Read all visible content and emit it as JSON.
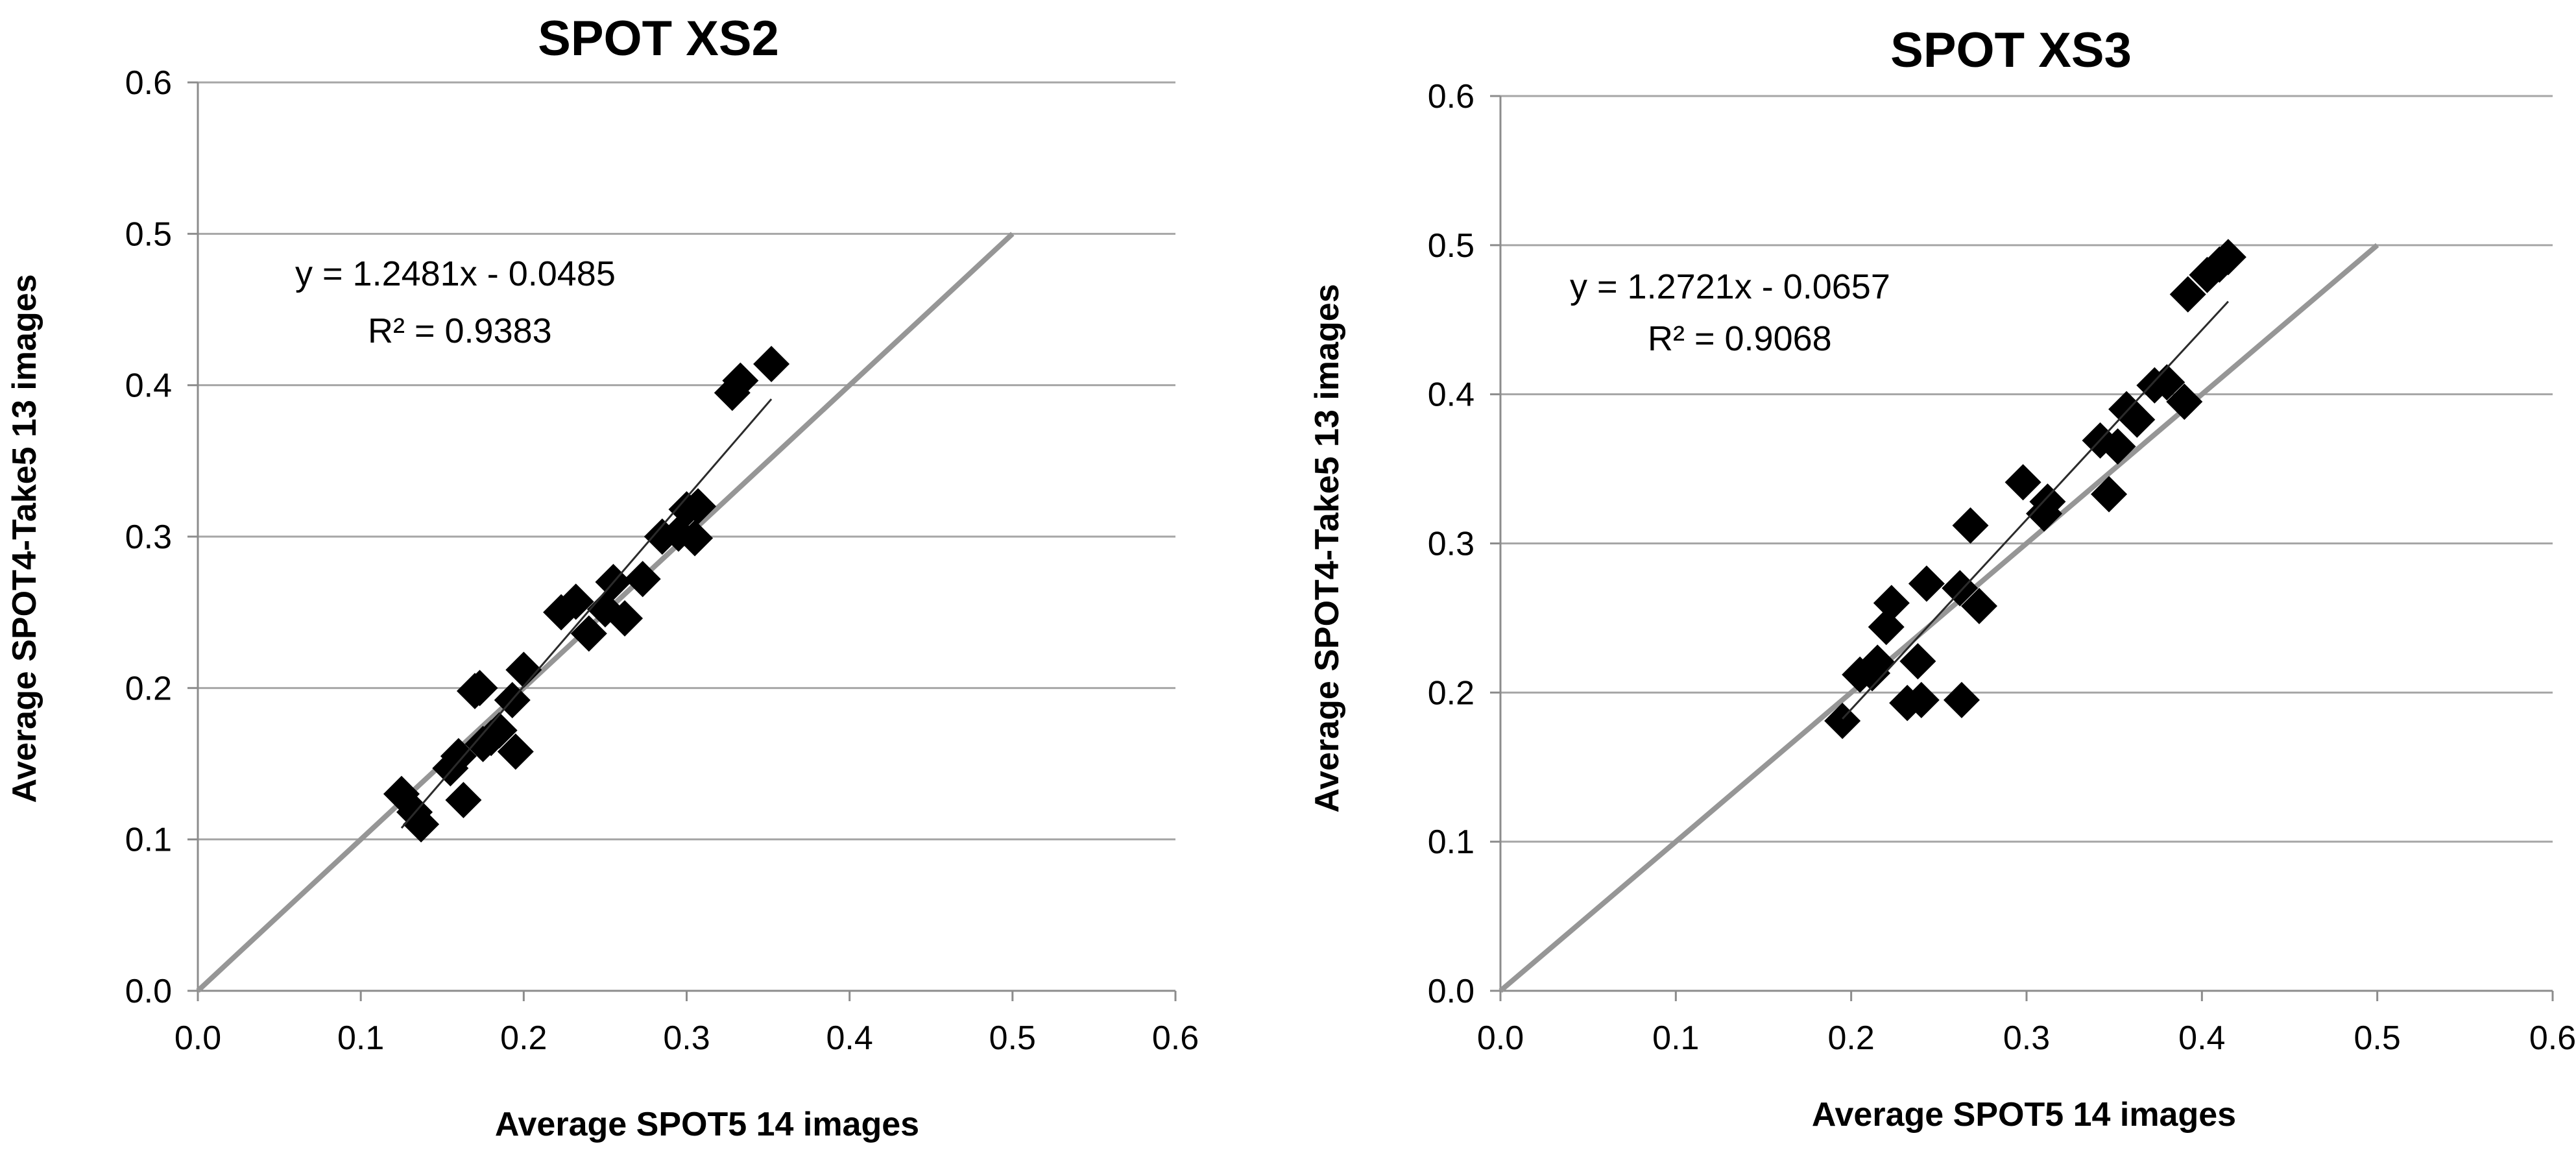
{
  "chart_data": [
    {
      "type": "scatter",
      "title": "SPOT XS2",
      "xlabel": "Average SPOT5 14 images",
      "ylabel": "Average SPOT4-Take5 13 images",
      "xlim": [
        0,
        0.6
      ],
      "ylim": [
        0,
        0.6
      ],
      "xticks": [
        "0.0",
        "0.1",
        "0.2",
        "0.3",
        "0.4",
        "0.5",
        "0.6"
      ],
      "yticks": [
        "0.0",
        "0.1",
        "0.2",
        "0.3",
        "0.4",
        "0.5",
        "0.6"
      ],
      "grid": "horizontal",
      "equation": "y = 1.2481x - 0.0485",
      "r2": "R² = 0.9383",
      "trendline": {
        "slope": 1.2481,
        "intercept": -0.0485,
        "x_range": [
          0.125,
          0.352
        ]
      },
      "reference_line": {
        "x": [
          0,
          0.5
        ],
        "y": [
          0,
          0.5
        ]
      },
      "points": [
        {
          "x": 0.125,
          "y": 0.13
        },
        {
          "x": 0.133,
          "y": 0.118
        },
        {
          "x": 0.137,
          "y": 0.11
        },
        {
          "x": 0.155,
          "y": 0.147
        },
        {
          "x": 0.16,
          "y": 0.155
        },
        {
          "x": 0.163,
          "y": 0.126
        },
        {
          "x": 0.17,
          "y": 0.198
        },
        {
          "x": 0.173,
          "y": 0.2
        },
        {
          "x": 0.175,
          "y": 0.163
        },
        {
          "x": 0.18,
          "y": 0.167
        },
        {
          "x": 0.185,
          "y": 0.172
        },
        {
          "x": 0.193,
          "y": 0.192
        },
        {
          "x": 0.195,
          "y": 0.158
        },
        {
          "x": 0.2,
          "y": 0.212
        },
        {
          "x": 0.223,
          "y": 0.25
        },
        {
          "x": 0.232,
          "y": 0.257
        },
        {
          "x": 0.24,
          "y": 0.236
        },
        {
          "x": 0.25,
          "y": 0.252
        },
        {
          "x": 0.255,
          "y": 0.27
        },
        {
          "x": 0.262,
          "y": 0.246
        },
        {
          "x": 0.273,
          "y": 0.272
        },
        {
          "x": 0.285,
          "y": 0.3
        },
        {
          "x": 0.295,
          "y": 0.302
        },
        {
          "x": 0.3,
          "y": 0.318
        },
        {
          "x": 0.305,
          "y": 0.299
        },
        {
          "x": 0.307,
          "y": 0.32
        },
        {
          "x": 0.328,
          "y": 0.395
        },
        {
          "x": 0.333,
          "y": 0.403
        },
        {
          "x": 0.352,
          "y": 0.414
        }
      ]
    },
    {
      "type": "scatter",
      "title": "SPOT XS3",
      "xlabel": "Average SPOT5 14 images",
      "ylabel": "Average SPOT4-Take5 13 images",
      "xlim": [
        0,
        0.6
      ],
      "ylim": [
        0,
        0.6
      ],
      "xticks": [
        "0.0",
        "0.1",
        "0.2",
        "0.3",
        "0.4",
        "0.5",
        "0.6"
      ],
      "yticks": [
        "0.0",
        "0.1",
        "0.2",
        "0.3",
        "0.4",
        "0.5",
        "0.6"
      ],
      "grid": "horizontal",
      "equation": "y = 1.2721x - 0.0657",
      "r2": "R² = 0.9068",
      "trendline": {
        "slope": 1.2721,
        "intercept": -0.0657,
        "x_range": [
          0.195,
          0.415
        ]
      },
      "reference_line": {
        "x": [
          0,
          0.5
        ],
        "y": [
          0,
          0.5
        ]
      },
      "points": [
        {
          "x": 0.195,
          "y": 0.181
        },
        {
          "x": 0.205,
          "y": 0.212
        },
        {
          "x": 0.212,
          "y": 0.213
        },
        {
          "x": 0.215,
          "y": 0.22
        },
        {
          "x": 0.22,
          "y": 0.244
        },
        {
          "x": 0.223,
          "y": 0.26
        },
        {
          "x": 0.232,
          "y": 0.193
        },
        {
          "x": 0.238,
          "y": 0.221
        },
        {
          "x": 0.24,
          "y": 0.195
        },
        {
          "x": 0.243,
          "y": 0.273
        },
        {
          "x": 0.262,
          "y": 0.27
        },
        {
          "x": 0.263,
          "y": 0.195
        },
        {
          "x": 0.268,
          "y": 0.312
        },
        {
          "x": 0.273,
          "y": 0.258
        },
        {
          "x": 0.298,
          "y": 0.341
        },
        {
          "x": 0.31,
          "y": 0.32
        },
        {
          "x": 0.312,
          "y": 0.328
        },
        {
          "x": 0.342,
          "y": 0.369
        },
        {
          "x": 0.347,
          "y": 0.333
        },
        {
          "x": 0.352,
          "y": 0.365
        },
        {
          "x": 0.357,
          "y": 0.39
        },
        {
          "x": 0.363,
          "y": 0.383
        },
        {
          "x": 0.373,
          "y": 0.406
        },
        {
          "x": 0.38,
          "y": 0.408
        },
        {
          "x": 0.39,
          "y": 0.395
        },
        {
          "x": 0.392,
          "y": 0.467
        },
        {
          "x": 0.403,
          "y": 0.48
        },
        {
          "x": 0.41,
          "y": 0.487
        },
        {
          "x": 0.415,
          "y": 0.492
        }
      ]
    }
  ]
}
